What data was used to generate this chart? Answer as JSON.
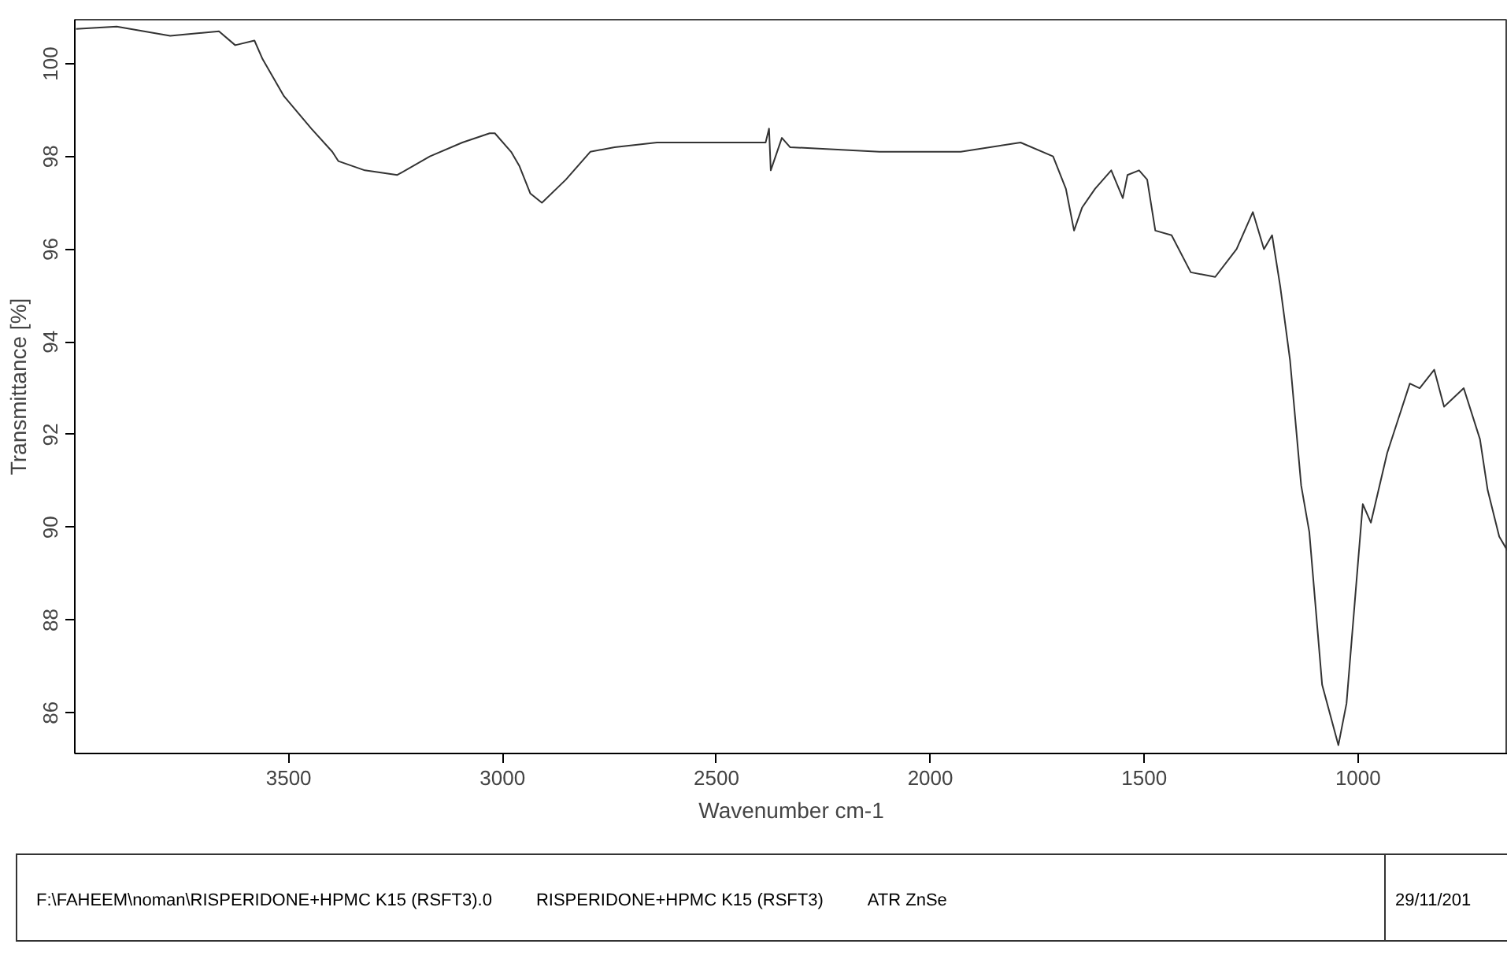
{
  "chart_data": {
    "type": "line",
    "xlabel": "Wavenumber cm-1",
    "ylabel": "Transmittance [%]",
    "xlim": [
      4000,
      650
    ],
    "ylim": [
      85.12,
      100.95
    ],
    "xticks": [
      3500,
      3000,
      2500,
      2000,
      1500,
      1000
    ],
    "yticks": [
      86,
      88,
      90,
      92,
      94,
      96,
      98,
      100
    ],
    "grid": false,
    "marker": "none",
    "line_style": "solid",
    "series": [
      {
        "color": "#333333",
        "x": [
          3997,
          3902,
          3777,
          3663,
          3625,
          3580,
          3561,
          3511,
          3447,
          3398,
          3384,
          3322,
          3246,
          3170,
          3094,
          3030,
          3018,
          2980,
          2961,
          2935,
          2908,
          2852,
          2795,
          2738,
          2639,
          2461,
          2385,
          2377,
          2373,
          2347,
          2328,
          2119,
          1929,
          1789,
          1713,
          1683,
          1664,
          1645,
          1615,
          1577,
          1550,
          1539,
          1512,
          1493,
          1474,
          1436,
          1391,
          1334,
          1284,
          1246,
          1220,
          1201,
          1182,
          1159,
          1133,
          1114,
          1084,
          1046,
          1027,
          989,
          970,
          932,
          879,
          856,
          822,
          799,
          753,
          715,
          697,
          670,
          651
        ],
        "values": [
          100.75,
          100.8,
          100.6,
          100.7,
          100.4,
          100.5,
          100.1,
          99.3,
          98.6,
          98.1,
          97.9,
          97.7,
          97.6,
          98.0,
          98.3,
          98.5,
          98.5,
          98.1,
          97.8,
          97.2,
          97.0,
          97.5,
          98.1,
          98.2,
          98.3,
          98.3,
          98.3,
          98.6,
          97.7,
          98.4,
          98.2,
          98.1,
          98.1,
          98.3,
          98.0,
          97.3,
          96.4,
          96.9,
          97.3,
          97.7,
          97.1,
          97.6,
          97.7,
          97.5,
          96.4,
          96.3,
          95.5,
          95.4,
          96.0,
          96.8,
          96.0,
          96.3,
          95.2,
          93.6,
          90.9,
          89.9,
          86.6,
          85.3,
          86.2,
          90.5,
          90.1,
          91.6,
          93.1,
          93.0,
          93.4,
          92.6,
          93.0,
          91.9,
          90.8,
          89.8,
          89.5
        ]
      }
    ],
    "annotations": [
      "F:\\FAHEEM\\noman\\RISPERIDONE+HPMC K15 (RSFT3).0",
      "RISPERIDONE+HPMC K15 (RSFT3)",
      "ATR ZnSe",
      "29/11/201"
    ]
  }
}
